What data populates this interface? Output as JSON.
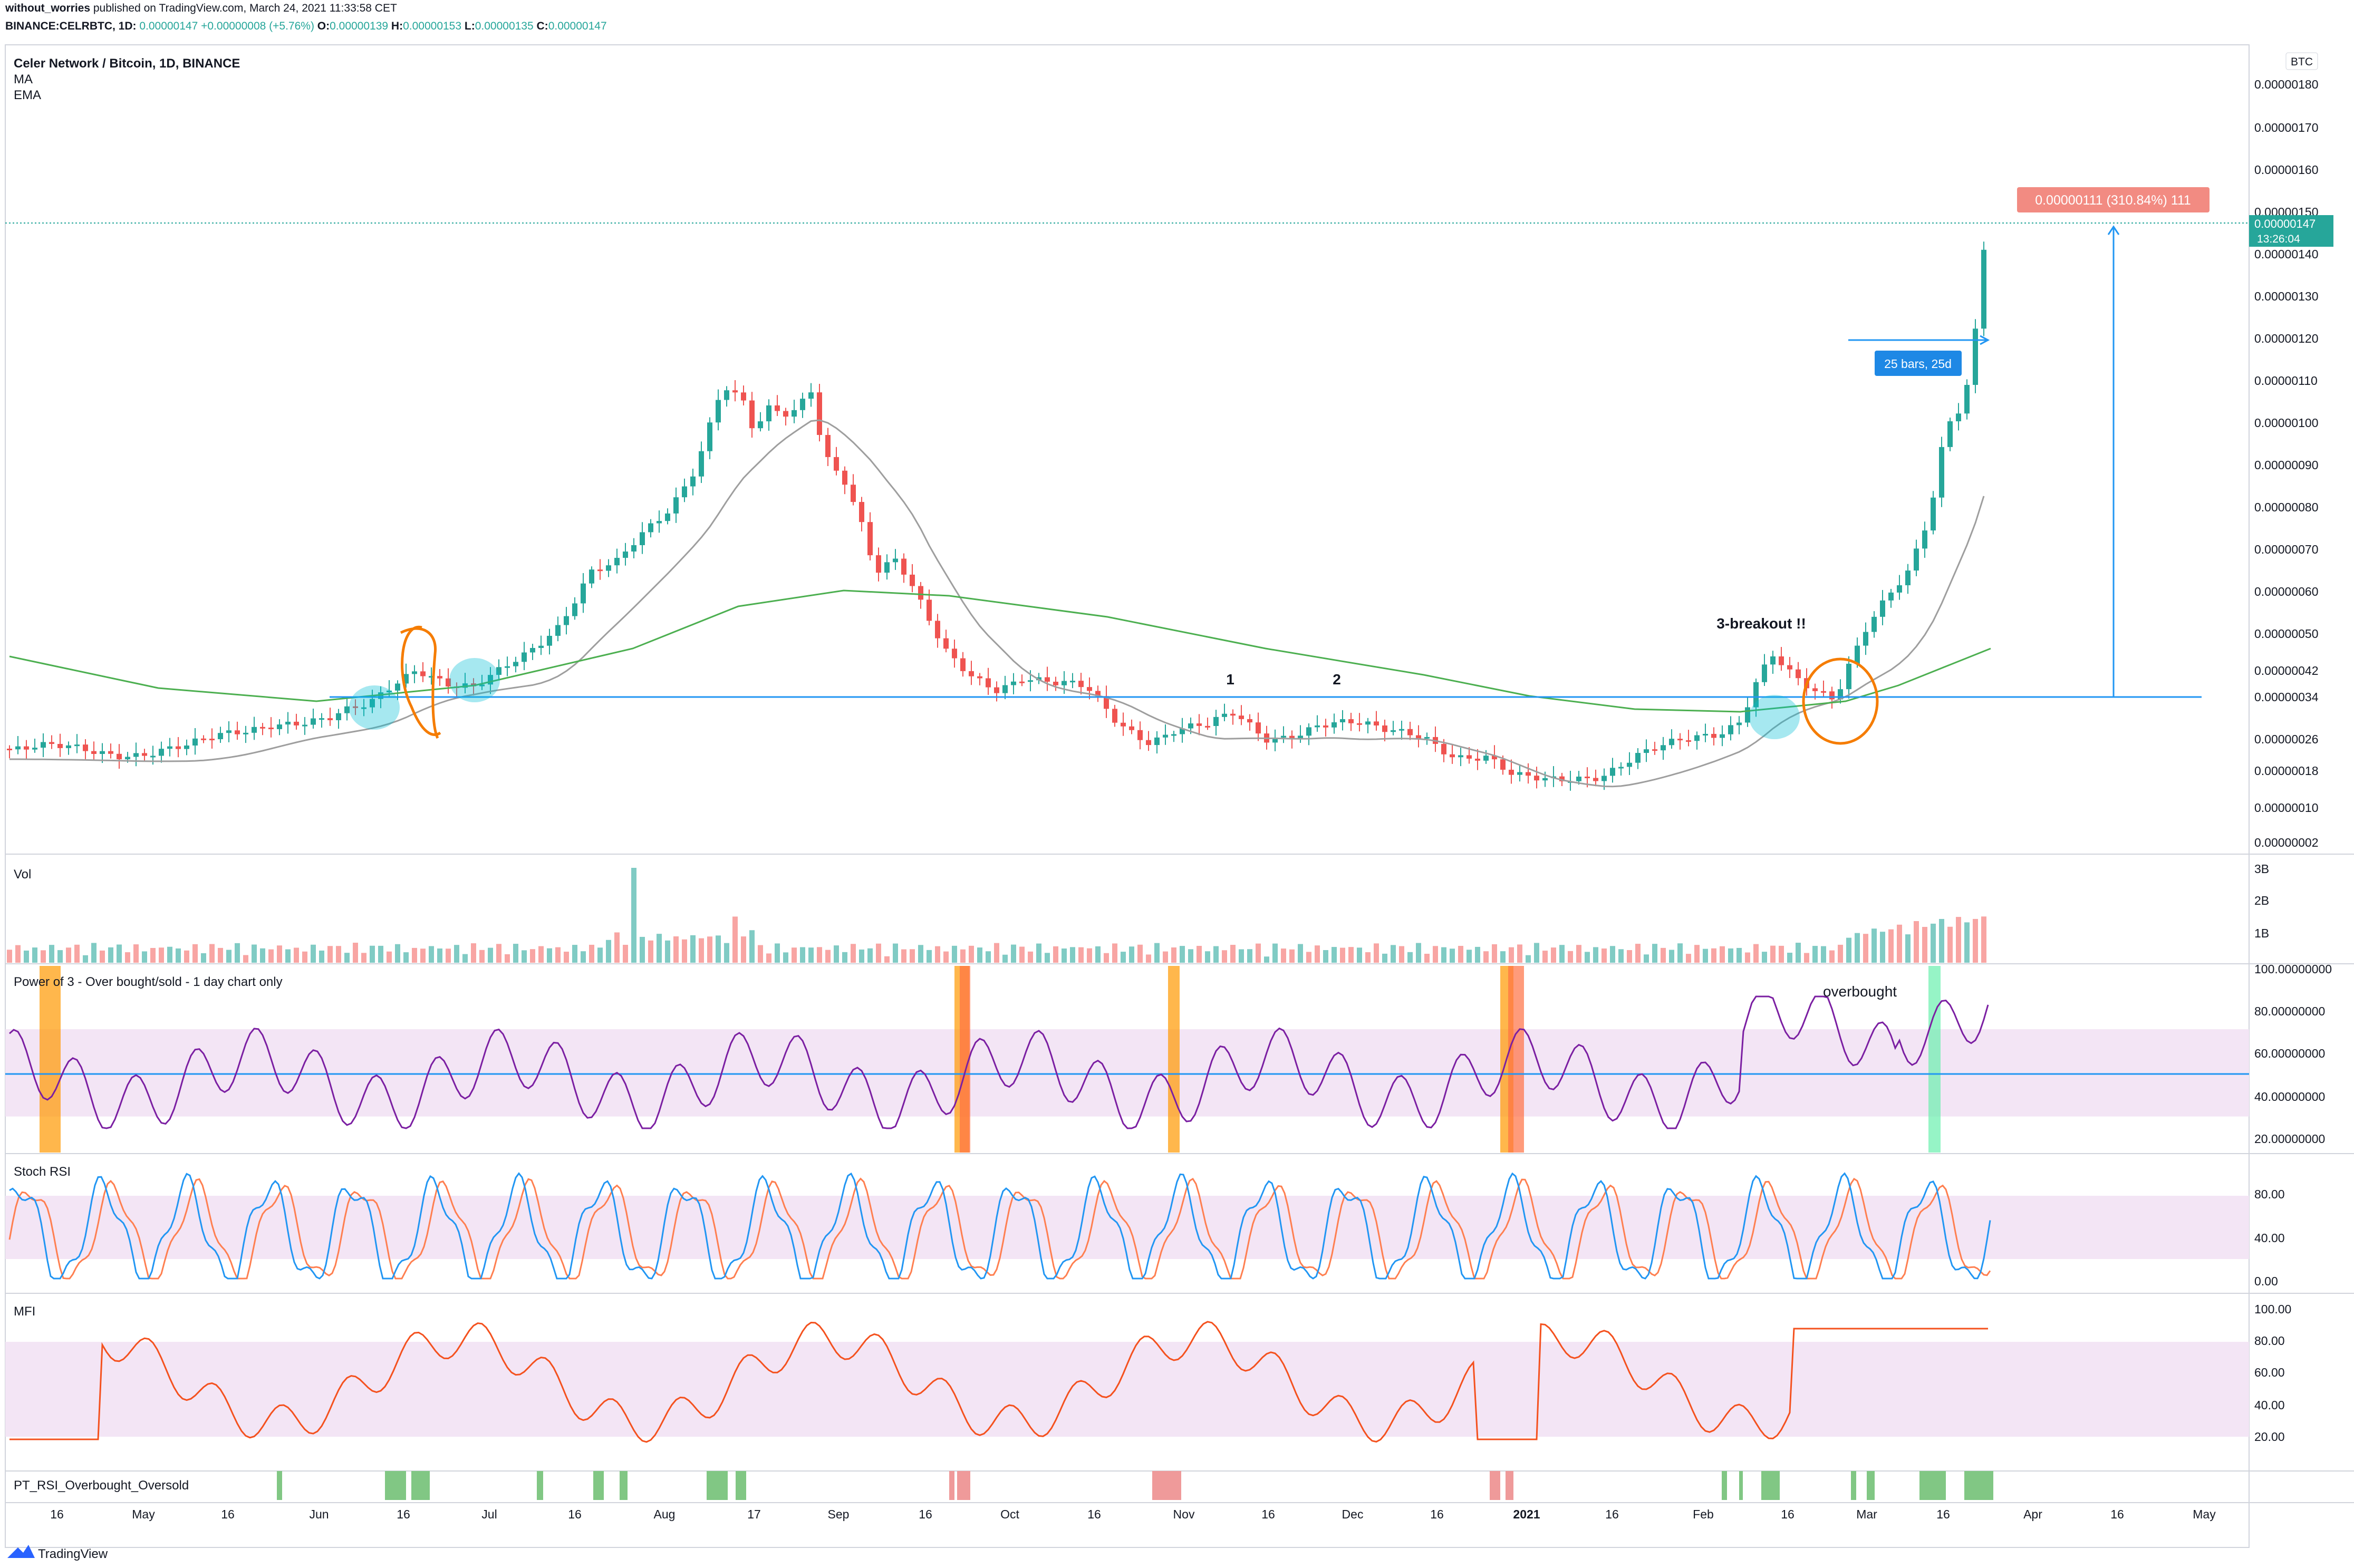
{
  "header": {
    "publisher": "without_worries",
    "published_text": " published on TradingView.com, March 24, 2021 11:33:58 CET",
    "symbol": "BINANCE:CELRBTC, 1D",
    "change": "0.00000147 +0.00000008 (+5.76%)",
    "ohlc": {
      "O": "0.00000139",
      "H": "0.00000153",
      "L": "0.00000135",
      "C": "0.00000147"
    }
  },
  "brand": {
    "name": "TradingView"
  },
  "colors": {
    "up": "#26a69a",
    "down": "#ef5350",
    "ma": "#9e9e9e",
    "ema": "#4caf50",
    "hline": "#2196f3",
    "purple_band": "#f3e5f5",
    "power3": "#7b1fa2",
    "stoch_k": "#2196f3",
    "stoch_d": "#ff7f50",
    "mfi": "#f4511e",
    "orange_marker": "#ff9800",
    "green_marker": "#69f0ae",
    "annot": "#f57c00"
  },
  "chart_data": [
    {
      "type": "candlestick",
      "title": "Celer Network / Bitcoin, 1D, BINANCE",
      "legend": [
        "MA",
        "EMA"
      ],
      "y_unit": "BTC",
      "ylim": [
        2e-08,
        1.8e-06
      ],
      "y_ticks": [
        "0.00000180",
        "0.00000170",
        "0.00000160",
        "0.00000150",
        "0.00000140",
        "0.00000130",
        "0.00000120",
        "0.00000110",
        "0.00000100",
        "0.00000090",
        "0.00000080",
        "0.00000070",
        "0.00000060",
        "0.00000050",
        "0.00000042",
        "0.00000034",
        "0.00000026",
        "0.00000018",
        "0.00000010",
        "0.00000002"
      ],
      "x_ticks": [
        "16",
        "May",
        "16",
        "Jun",
        "16",
        "Jul",
        "16",
        "Aug",
        "17",
        "Sep",
        "16",
        "Oct",
        "16",
        "Nov",
        "16",
        "Dec",
        "16",
        "2021",
        "16",
        "Feb",
        "16",
        "Mar",
        "16",
        "Apr",
        "16",
        "May"
      ],
      "close_approx": [
        [
          "Apr 10",
          2.65e-07
        ],
        [
          "May 1",
          2.6e-07
        ],
        [
          "May 20",
          2.9e-07
        ],
        [
          "Jun 1",
          3e-07
        ],
        [
          "Jun 16",
          4e-07
        ],
        [
          "Jul 1",
          3.8e-07
        ],
        [
          "Jul 16",
          5.2e-07
        ],
        [
          "Aug 1",
          7e-07
        ],
        [
          "Aug 10",
          9e-07
        ],
        [
          "Aug 17",
          1.05e-06
        ],
        [
          "Aug 25",
          9e-07
        ],
        [
          "Sep 1",
          8e-07
        ],
        [
          "Sep 5",
          5.8e-07
        ],
        [
          "Sep 16",
          5.6e-07
        ],
        [
          "Oct 1",
          4e-07
        ],
        [
          "Oct 16",
          3.7e-07
        ],
        [
          "Nov 1",
          2.6e-07
        ],
        [
          "Nov 10",
          3.2e-07
        ],
        [
          "Nov 20",
          2.8e-07
        ],
        [
          "Dec 1",
          3.2e-07
        ],
        [
          "Dec 16",
          2.5e-07
        ],
        [
          "Jan 1",
          1.9e-07
        ],
        [
          "Jan 16",
          2.2e-07
        ],
        [
          "Feb 1",
          2.8e-07
        ],
        [
          "Feb 10",
          4.2e-07
        ],
        [
          "Feb 22",
          3.6e-07
        ],
        [
          "Mar 1",
          5e-07
        ],
        [
          "Mar 10",
          7e-07
        ],
        [
          "Mar 16",
          1.05e-06
        ],
        [
          "Mar 20",
          1.4e-06
        ],
        [
          "Mar 24",
          1.47e-06
        ]
      ],
      "horizontal_line": 3.5e-07,
      "price_label": "0.00000147",
      "countdown": "13:26:04",
      "measure": {
        "text": "0.00000111 (310.84%) 111",
        "bars_text": "25 bars, 25d"
      },
      "annotations": [
        "1",
        "2",
        "3-breakout !!"
      ]
    },
    {
      "type": "bar",
      "title": "Vol",
      "y_ticks": [
        "3B",
        "2B",
        "1B"
      ]
    },
    {
      "type": "line",
      "title": "Power of 3 - Over bought/sold - 1 day chart only",
      "y_ticks": [
        "100.00000000",
        "80.00000000",
        "60.00000000",
        "40.00000000",
        "20.00000000"
      ],
      "band": [
        30,
        70
      ],
      "midline": 50,
      "annotation": "overbought",
      "values_approx": [
        [
          0,
          40
        ],
        [
          0.05,
          32
        ],
        [
          0.12,
          58
        ],
        [
          0.2,
          50
        ],
        [
          0.28,
          78
        ],
        [
          0.33,
          60
        ],
        [
          0.4,
          78
        ],
        [
          0.46,
          62
        ],
        [
          0.52,
          72
        ],
        [
          0.6,
          46
        ],
        [
          0.64,
          40
        ],
        [
          0.72,
          28
        ],
        [
          0.78,
          52
        ],
        [
          0.84,
          50
        ],
        [
          0.9,
          58
        ],
        [
          1,
          30
        ]
      ]
    },
    {
      "type": "line",
      "title": "Stoch RSI",
      "y_ticks": [
        "80.00",
        "40.00",
        "0.00"
      ],
      "band": [
        20,
        80
      ],
      "series": []
    },
    {
      "type": "line",
      "title": "MFI",
      "y_ticks": [
        "100.00",
        "80.00",
        "60.00",
        "40.00",
        "20.00"
      ],
      "band": [
        20,
        80
      ]
    },
    {
      "type": "bar",
      "title": "PT_RSI_Overbought_Oversold"
    }
  ]
}
